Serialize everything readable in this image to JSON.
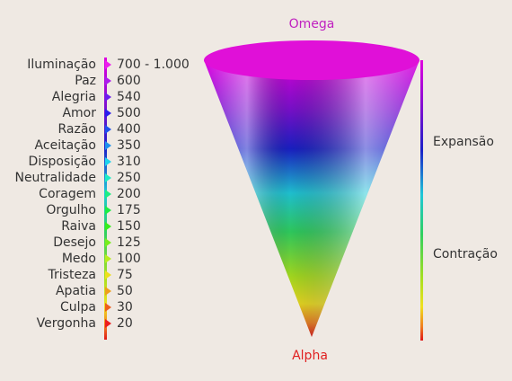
{
  "top_label": "Omega",
  "bottom_label": "Alpha",
  "scale_labels": {
    "upper": "Expansão",
    "lower": "Contração"
  },
  "levels": [
    {
      "label": "Iluminação",
      "value": "700 - 1.000"
    },
    {
      "label": "Paz",
      "value": 600
    },
    {
      "label": "Alegria",
      "value": 540
    },
    {
      "label": "Amor",
      "value": 500
    },
    {
      "label": "Razão",
      "value": 400
    },
    {
      "label": "Aceitação",
      "value": 350
    },
    {
      "label": "Disposição",
      "value": 310
    },
    {
      "label": "Neutralidade",
      "value": 250
    },
    {
      "label": "Coragem",
      "value": 200
    },
    {
      "label": "Orgulho",
      "value": 175
    },
    {
      "label": "Raiva",
      "value": 150
    },
    {
      "label": "Desejo",
      "value": 125
    },
    {
      "label": "Medo",
      "value": 100
    },
    {
      "label": "Tristeza",
      "value": 75
    },
    {
      "label": "Apatia",
      "value": 50
    },
    {
      "label": "Culpa",
      "value": 30
    },
    {
      "label": "Vergonha",
      "value": 20
    }
  ]
}
